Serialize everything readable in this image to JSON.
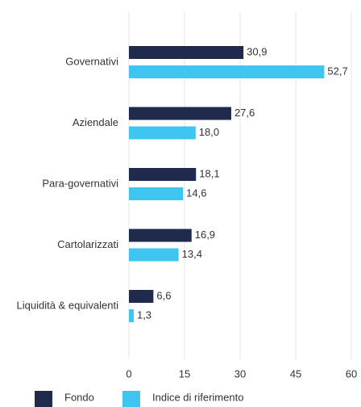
{
  "chart_data": {
    "type": "hbar",
    "categories": [
      "Governativi",
      "Aziendale",
      "Para-governativi",
      "Cartolarizzati",
      "Liquidità & equivalenti"
    ],
    "series": [
      {
        "name": "Fondo",
        "color": "#1f2a4d",
        "values": [
          30.9,
          27.6,
          18.1,
          16.9,
          6.6
        ],
        "value_labels": [
          "30,9",
          "27,6",
          "18,1",
          "16,9",
          "6,6"
        ]
      },
      {
        "name": "Indice di riferimento",
        "color": "#3ec6f0",
        "values": [
          52.7,
          18.0,
          14.6,
          13.4,
          1.3
        ],
        "value_labels": [
          "52,7",
          "18,0",
          "14,6",
          "13,4",
          "1,3"
        ]
      }
    ],
    "xlim": [
      0,
      60
    ],
    "xticks": [
      0,
      15,
      30,
      45,
      60
    ],
    "grid": true
  }
}
